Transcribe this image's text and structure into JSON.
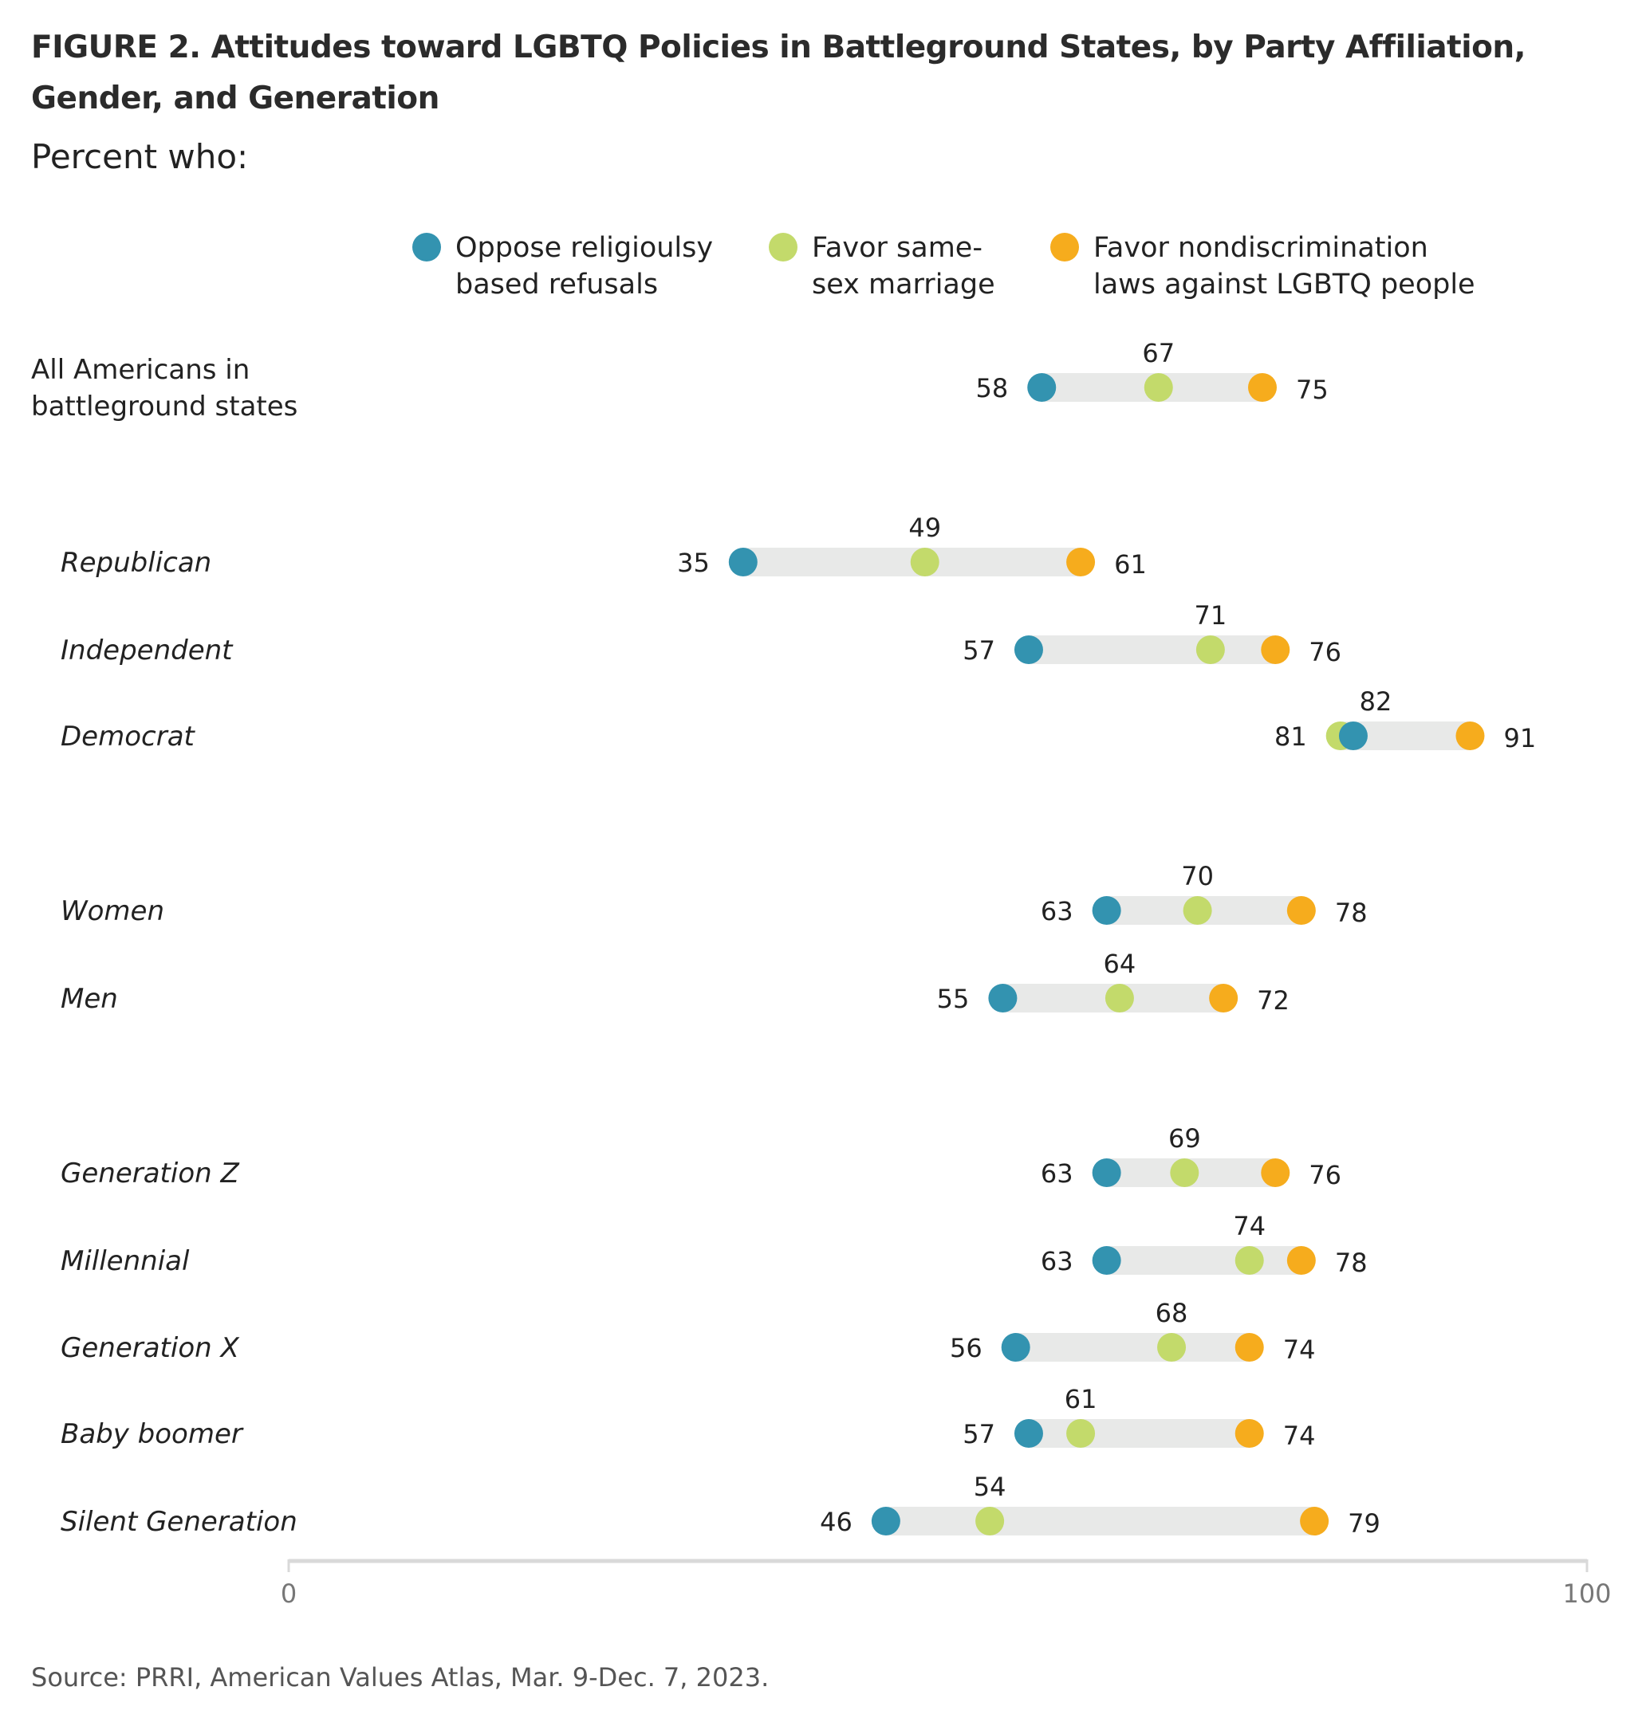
{
  "title": "FIGURE 2. Attitudes toward LGBTQ Policies in Battleground States, by Party Affiliation, Gender, and Generation",
  "subtitle": "Percent who:",
  "source": "Source: PRRI, American Values Atlas, Mar. 9-Dec. 7, 2023.",
  "chart_data": {
    "type": "dot-range",
    "xlim": [
      0,
      100
    ],
    "x_ticks": [
      "0",
      "100"
    ],
    "grid": false,
    "legend_position": "top",
    "series": [
      {
        "name": "Oppose religioulsy based refusals",
        "legend_lines": [
          "Oppose religioulsy",
          "based refusals"
        ],
        "color": "#3393b0",
        "values": [
          58,
          35,
          57,
          82,
          63,
          55,
          63,
          63,
          56,
          57,
          46
        ]
      },
      {
        "name": "Favor same-sex marriage",
        "legend_lines": [
          "Favor same-",
          "sex marriage"
        ],
        "color": "#c3da6b",
        "values": [
          67,
          49,
          71,
          81,
          70,
          64,
          69,
          74,
          68,
          61,
          54
        ]
      },
      {
        "name": "Favor nondiscrimination laws against LGBTQ people",
        "legend_lines": [
          "Favor nondiscrimination",
          "laws against LGBTQ people"
        ],
        "color": "#f6ac1d",
        "values": [
          75,
          61,
          76,
          91,
          78,
          72,
          76,
          78,
          74,
          74,
          79
        ]
      }
    ],
    "categories": [
      {
        "label": [
          "All Americans in",
          "battleground states"
        ],
        "italic": false
      },
      {
        "label": [
          "Republican"
        ],
        "italic": true
      },
      {
        "label": [
          "Independent"
        ],
        "italic": true
      },
      {
        "label": [
          "Democrat"
        ],
        "italic": true
      },
      {
        "label": [
          "Women"
        ],
        "italic": true
      },
      {
        "label": [
          "Men"
        ],
        "italic": true
      },
      {
        "label": [
          "Generation Z"
        ],
        "italic": true
      },
      {
        "label": [
          "Millennial"
        ],
        "italic": true
      },
      {
        "label": [
          "Generation X"
        ],
        "italic": true
      },
      {
        "label": [
          "Baby boomer"
        ],
        "italic": true
      },
      {
        "label": [
          "Silent Generation"
        ],
        "italic": true
      }
    ],
    "bar_color": "#e8e9e8",
    "axis_color": "#d9d9d9"
  }
}
